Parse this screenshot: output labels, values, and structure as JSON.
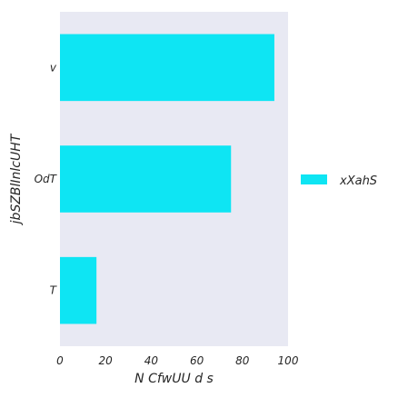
{
  "chart_data": {
    "type": "bar",
    "orientation": "horizontal",
    "categories": [
      "v",
      "OdT",
      "T"
    ],
    "series": [
      {
        "name": "xXahS",
        "values": [
          94,
          75,
          16
        ]
      }
    ],
    "xlabel": "N CfwUU d s",
    "ylabel": "jbSZBlInlcUHT",
    "xlim": [
      0,
      100
    ],
    "xticks": [
      "0",
      "20",
      "40",
      "60",
      "80",
      "100"
    ],
    "grid": false,
    "legend_position": "right",
    "colors": {
      "bar": "#0ee5f3",
      "plot_background": "#e8e9f3"
    }
  }
}
